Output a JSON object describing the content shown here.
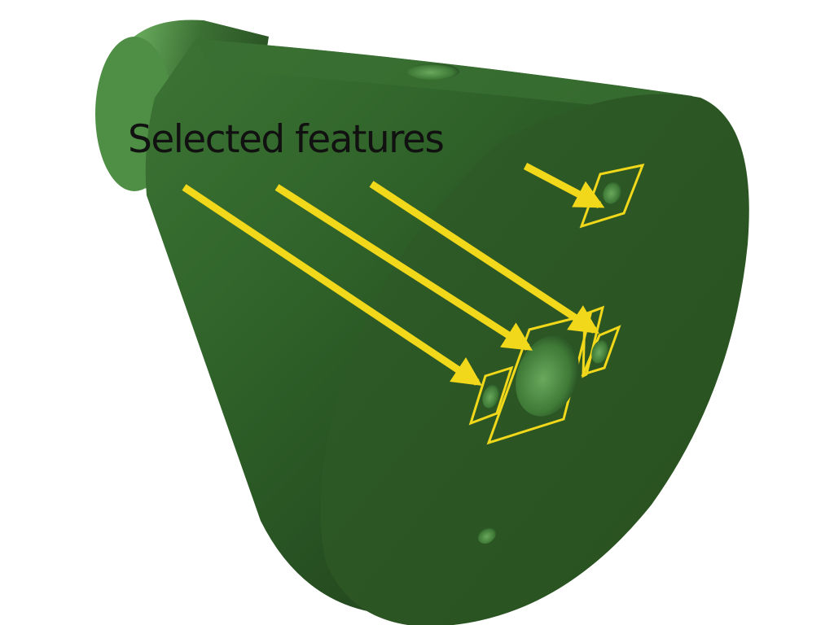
{
  "figure": {
    "label": "Selected features"
  },
  "colors": {
    "background": "#ffffff",
    "part_green": "#2e5e28",
    "part_green_light": "#5e9a52",
    "part_green_dark": "#1c3d18",
    "highlight_yellow": "#f2d81a",
    "label_text": "#111111"
  },
  "annotations": {
    "arrow_count": 4,
    "highlighted_feature_count": 4
  }
}
